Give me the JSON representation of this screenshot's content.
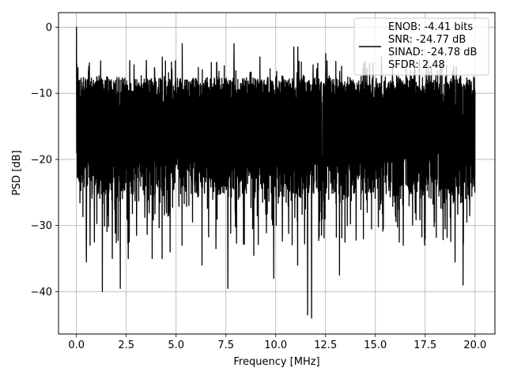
{
  "chart_data": {
    "type": "line",
    "title": "",
    "xlabel": "Frequency [MHz]",
    "ylabel": "PSD [dB]",
    "xlim": [
      -0.9,
      21.0
    ],
    "ylim": [
      -46.4,
      2.2
    ],
    "xticks": [
      0.0,
      2.5,
      5.0,
      7.5,
      10.0,
      12.5,
      15.0,
      17.5,
      20.0
    ],
    "xtick_labels": [
      "0.0",
      "2.5",
      "5.0",
      "7.5",
      "10.0",
      "12.5",
      "15.0",
      "17.5",
      "20.0"
    ],
    "yticks": [
      0,
      -10,
      -20,
      -30,
      -40
    ],
    "ytick_labels": [
      "0",
      "−10",
      "−20",
      "−30",
      "−40"
    ],
    "grid": true,
    "legend_position": "top-right",
    "legend_lines": [
      "ENOB: -4.41 bits",
      "SNR: -24.77 dB",
      "SINAD: -24.78 dB",
      "SFDR: 2.48"
    ],
    "line_color": "#000000",
    "series": [
      {
        "x_range": [
          0,
          20
        ],
        "peak": [
          0.0,
          0.0
        ],
        "typical_band": [
          -25,
          -8
        ],
        "deep_dips": [
          [
            0.5,
            -35.5
          ],
          [
            0.9,
            -32.5
          ],
          [
            1.3,
            -40.0
          ],
          [
            1.8,
            -35.0
          ],
          [
            2.2,
            -39.5
          ],
          [
            2.6,
            -35.0
          ],
          [
            3.8,
            -35.0
          ],
          [
            4.3,
            -35.0
          ],
          [
            4.7,
            -34.0
          ],
          [
            5.3,
            -33.0
          ],
          [
            6.3,
            -36.0
          ],
          [
            7.0,
            -33.5
          ],
          [
            7.6,
            -39.5
          ],
          [
            8.9,
            -34.5
          ],
          [
            9.9,
            -38.0
          ],
          [
            11.1,
            -36.0
          ],
          [
            11.6,
            -43.5
          ],
          [
            11.8,
            -44.0
          ],
          [
            13.2,
            -37.5
          ],
          [
            14.4,
            -32.0
          ],
          [
            15.4,
            -30.5
          ],
          [
            16.4,
            -33.0
          ],
          [
            17.5,
            -32.0
          ],
          [
            18.5,
            -30.5
          ],
          [
            19.0,
            -35.5
          ],
          [
            19.4,
            -39.0
          ]
        ],
        "top_peaks": [
          [
            1.2,
            -7.5
          ],
          [
            3.5,
            -5.0
          ],
          [
            4.3,
            -4.5
          ],
          [
            5.3,
            -2.5
          ],
          [
            7.9,
            -2.5
          ],
          [
            9.2,
            -4.5
          ],
          [
            10.9,
            -3.0
          ],
          [
            11.1,
            -3.0
          ],
          [
            12.5,
            -4.0
          ],
          [
            14.4,
            -5.5
          ],
          [
            15.3,
            -4.5
          ],
          [
            17.2,
            -5.0
          ],
          [
            17.8,
            -6.0
          ]
        ]
      }
    ]
  }
}
